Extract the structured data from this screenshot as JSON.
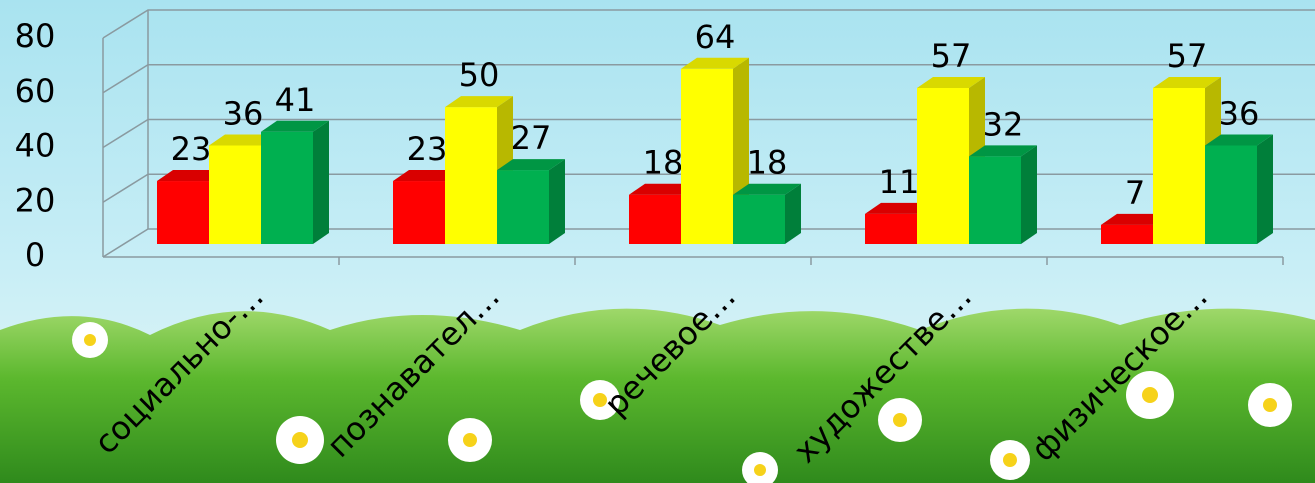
{
  "chart_data": {
    "type": "bar3d",
    "categories": [
      "социально-…",
      "познавател…",
      "речевое…",
      "художестве…",
      "физическое…"
    ],
    "series": [
      {
        "color": "#ff0000",
        "values": [
          23,
          23,
          18,
          11,
          7
        ]
      },
      {
        "color": "#ffff00",
        "values": [
          36,
          50,
          64,
          57,
          57
        ]
      },
      {
        "color": "#00b050",
        "values": [
          41,
          27,
          18,
          32,
          36
        ]
      }
    ],
    "ylim": [
      0,
      80
    ],
    "yticks": [
      0,
      20,
      40,
      60,
      80
    ],
    "grid": true
  }
}
